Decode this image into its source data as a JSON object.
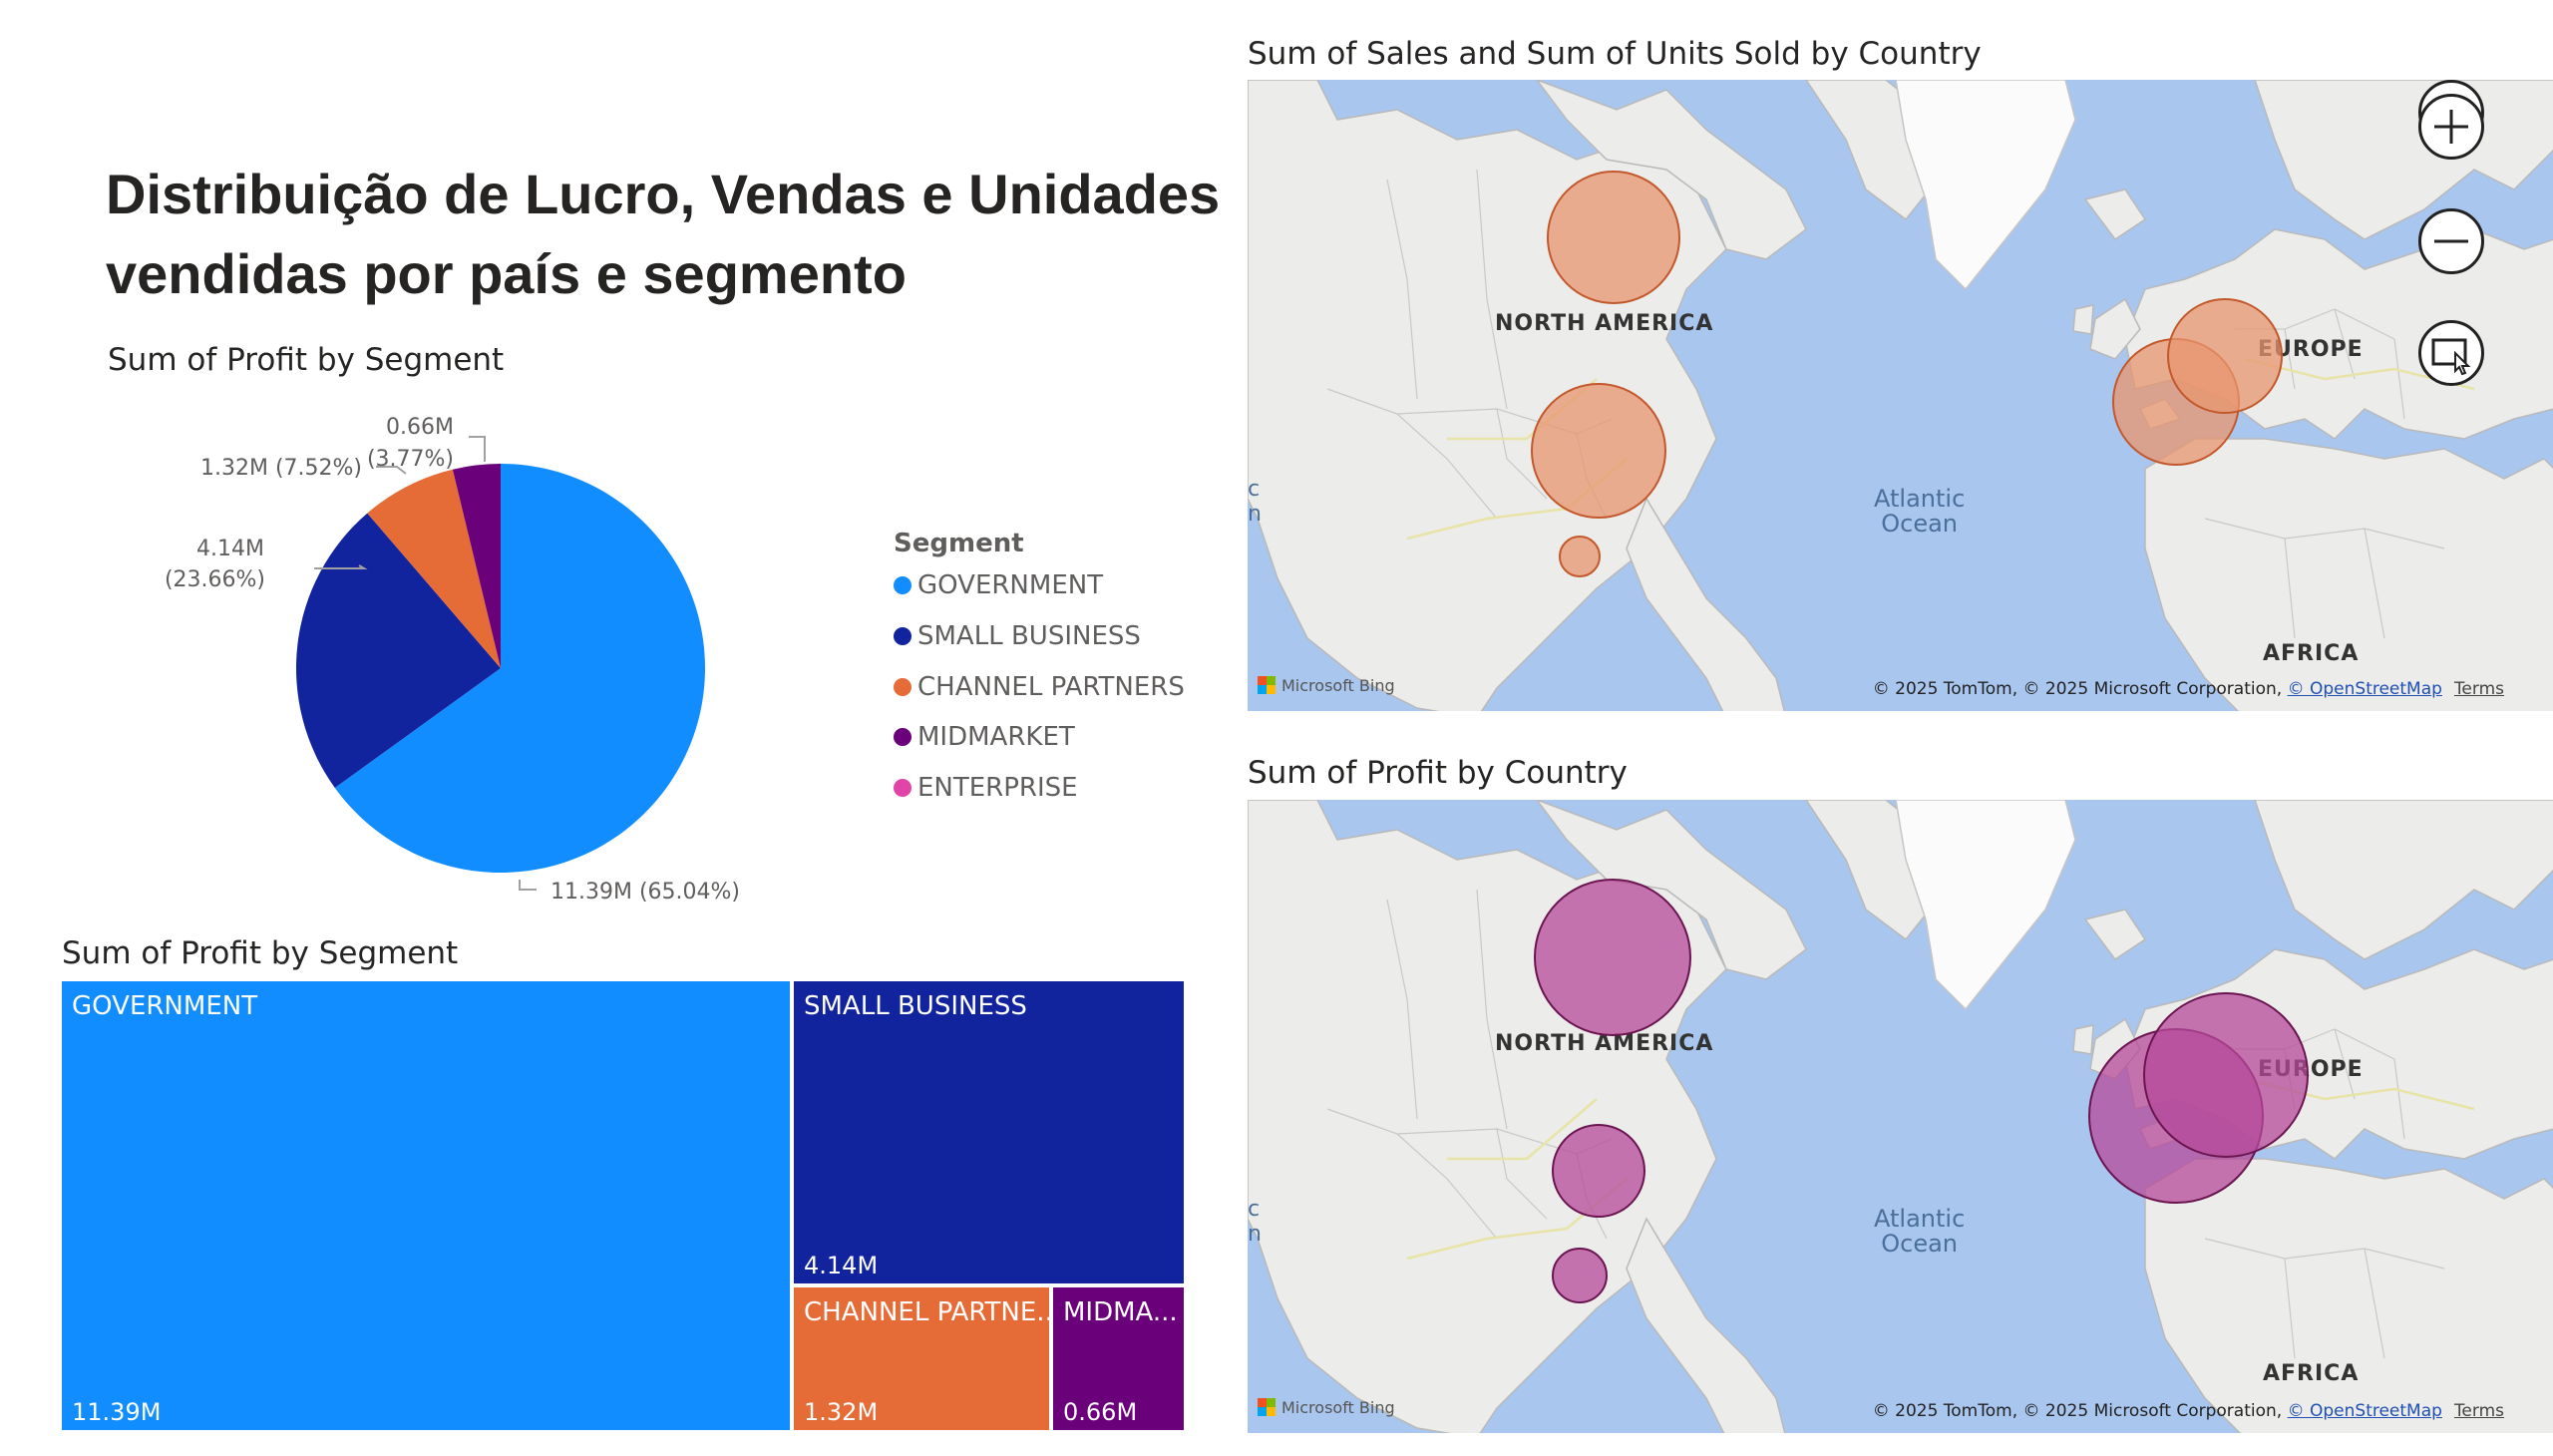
{
  "report": {
    "title": "Distribuição de Lucro, Vendas e Unidades vendidas por país e segmento"
  },
  "pie_visual": {
    "title": "Sum of Profit by Segment",
    "legend_title": "Segment",
    "legend": [
      {
        "label": "GOVERNMENT",
        "color": "#118dff"
      },
      {
        "label": "SMALL BUSINESS",
        "color": "#12239e"
      },
      {
        "label": "CHANNEL PARTNERS",
        "color": "#e66c37"
      },
      {
        "label": "MIDMARKET",
        "color": "#6b007b"
      },
      {
        "label": "ENTERPRISE",
        "color": "#e044a7"
      }
    ],
    "labels": {
      "government": "11.39M (65.04%)",
      "small_business_1": "4.14M",
      "small_business_2": "(23.66%)",
      "channel_partners": "1.32M (7.52%)",
      "midmarket_1": "0.66M",
      "midmarket_2": "(3.77%)"
    }
  },
  "treemap_visual": {
    "title": "Sum of Profit by Segment",
    "cells": [
      {
        "name": "GOVERNMENT",
        "value": "11.39M"
      },
      {
        "name": "SMALL BUSINESS",
        "value": "4.14M"
      },
      {
        "name": "CHANNEL PARTNE...",
        "value": "1.32M"
      },
      {
        "name": "MIDMA...",
        "value": "0.66M"
      }
    ]
  },
  "map_sales": {
    "title": "Sum of Sales and Sum of Units Sold by Country",
    "bubble_color": "#e8956f",
    "labels": {
      "north_america": "NORTH AMERICA",
      "europe": "EUROPE",
      "africa": "AFRICA",
      "ocean_1": "Atlantic",
      "ocean_2": "Ocean",
      "edge_1": "c",
      "edge_2": "n"
    },
    "bing": "Microsoft Bing",
    "attribution": "© 2025 TomTom, © 2025 Microsoft Corporation,",
    "osm": "© OpenStreetMap",
    "terms": "Terms",
    "controls": {
      "zoom_in": "zoom-in",
      "zoom_out": "zoom-out",
      "select": "select-region"
    }
  },
  "map_profit": {
    "title": "Sum of Profit by Country",
    "bubble_color": "#b5499a",
    "labels": {
      "north_america": "NORTH AMERICA",
      "europe": "EUROPE",
      "africa": "AFRICA",
      "ocean_1": "Atlantic",
      "ocean_2": "Ocean",
      "edge_1": "c",
      "edge_2": "n"
    },
    "bing": "Microsoft Bing",
    "attribution": "© 2025 TomTom, © 2025 Microsoft Corporation,",
    "osm": "© OpenStreetMap",
    "terms": "Terms"
  },
  "chart_data": [
    {
      "type": "pie",
      "title": "Sum of Profit by Segment",
      "categories": [
        "GOVERNMENT",
        "SMALL BUSINESS",
        "CHANNEL PARTNERS",
        "MIDMARKET"
      ],
      "values": [
        11.39,
        4.14,
        1.32,
        0.66
      ],
      "percentages": [
        65.04,
        23.66,
        7.52,
        3.77
      ],
      "legend": "right"
    },
    {
      "type": "treemap",
      "title": "Sum of Profit by Segment",
      "categories": [
        "GOVERNMENT",
        "SMALL BUSINESS",
        "CHANNEL PARTNERS",
        "MIDMARKET"
      ],
      "values": [
        11.39,
        4.14,
        1.32,
        0.66
      ]
    }
  ]
}
